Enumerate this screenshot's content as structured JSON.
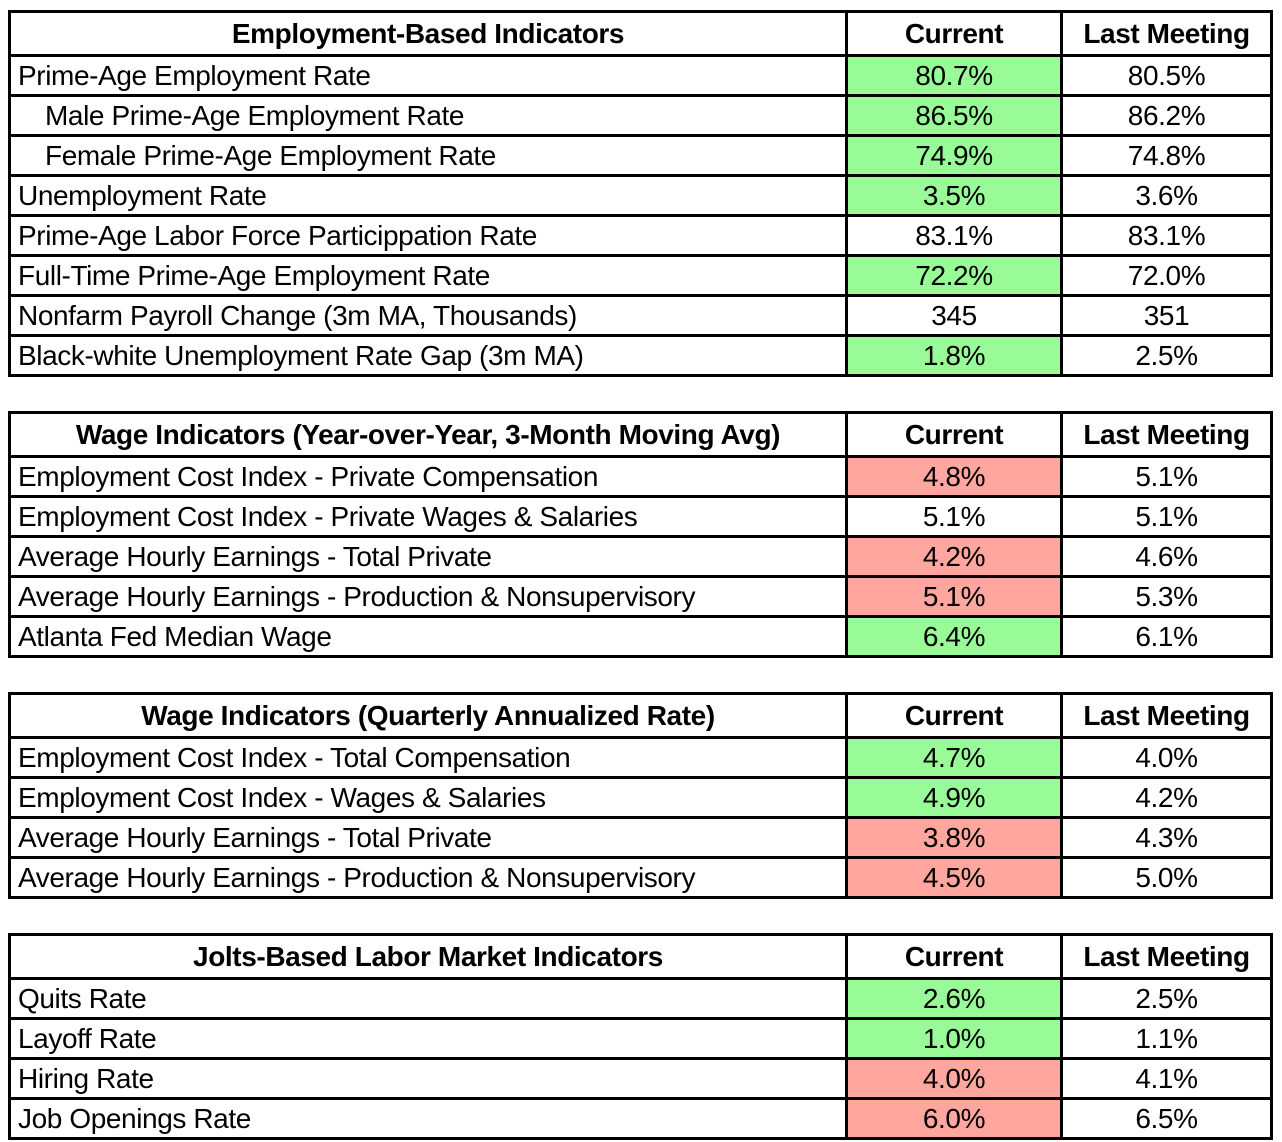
{
  "colors": {
    "positive_fill": "#98FB98",
    "negative_fill": "#FFA69E"
  },
  "column_headers": {
    "current": "Current",
    "last_meeting": "Last Meeting"
  },
  "tables": [
    {
      "title": "Employment-Based Indicators",
      "rows": [
        {
          "label": "Prime-Age Employment Rate",
          "current": "80.7%",
          "fill": "positive_fill",
          "last_meeting": "80.5%"
        },
        {
          "label": "Male Prime-Age Employment Rate",
          "current": "86.5%",
          "fill": "positive_fill",
          "last_meeting": "86.2%"
        },
        {
          "label": "Female Prime-Age Employment Rate",
          "current": "74.9%",
          "fill": "positive_fill",
          "last_meeting": "74.8%"
        },
        {
          "label": "Unemployment Rate",
          "current": "3.5%",
          "fill": "positive_fill",
          "last_meeting": "3.6%"
        },
        {
          "label": "Prime-Age Labor Force Particippation Rate",
          "current": "83.1%",
          "fill": "none",
          "last_meeting": "83.1%"
        },
        {
          "label": "Full-Time Prime-Age Employment Rate",
          "current": "72.2%",
          "fill": "positive_fill",
          "last_meeting": "72.0%"
        },
        {
          "label": "Nonfarm Payroll Change (3m MA, Thousands)",
          "current": "345",
          "fill": "none",
          "last_meeting": "351"
        },
        {
          "label": "Black-white Unemployment Rate Gap (3m MA)",
          "current": "1.8%",
          "fill": "positive_fill",
          "last_meeting": "2.5%"
        }
      ]
    },
    {
      "title": "Wage Indicators (Year-over-Year, 3-Month Moving Avg)",
      "rows": [
        {
          "label": "Employment Cost Index - Private Compensation",
          "current": "4.8%",
          "fill": "negative_fill",
          "last_meeting": "5.1%"
        },
        {
          "label": "Employment Cost Index - Private Wages & Salaries",
          "current": "5.1%",
          "fill": "none",
          "last_meeting": "5.1%"
        },
        {
          "label": "Average Hourly Earnings - Total Private",
          "current": "4.2%",
          "fill": "negative_fill",
          "last_meeting": "4.6%"
        },
        {
          "label": "Average Hourly Earnings - Production & Nonsupervisory",
          "current": "5.1%",
          "fill": "negative_fill",
          "last_meeting": "5.3%"
        },
        {
          "label": "Atlanta Fed Median Wage",
          "current": "6.4%",
          "fill": "positive_fill",
          "last_meeting": "6.1%"
        }
      ]
    },
    {
      "title": "Wage Indicators (Quarterly Annualized Rate)",
      "rows": [
        {
          "label": "Employment Cost Index - Total Compensation",
          "current": "4.7%",
          "fill": "positive_fill",
          "last_meeting": "4.0%"
        },
        {
          "label": "Employment Cost Index - Wages & Salaries",
          "current": "4.9%",
          "fill": "positive_fill",
          "last_meeting": "4.2%"
        },
        {
          "label": "Average Hourly Earnings - Total Private",
          "current": "3.8%",
          "fill": "negative_fill",
          "last_meeting": "4.3%"
        },
        {
          "label": "Average Hourly Earnings - Production & Nonsupervisory",
          "current": "4.5%",
          "fill": "negative_fill",
          "last_meeting": "5.0%"
        }
      ]
    },
    {
      "title": "Jolts-Based Labor Market Indicators",
      "rows": [
        {
          "label": "Quits Rate",
          "current": "2.6%",
          "fill": "positive_fill",
          "last_meeting": "2.5%"
        },
        {
          "label": "Layoff Rate",
          "current": "1.0%",
          "fill": "positive_fill",
          "last_meeting": "1.1%"
        },
        {
          "label": "Hiring Rate",
          "current": "4.0%",
          "fill": "negative_fill",
          "last_meeting": "4.1%"
        },
        {
          "label": "Job Openings Rate",
          "current": "6.0%",
          "fill": "negative_fill",
          "last_meeting": "6.5%"
        }
      ]
    }
  ]
}
